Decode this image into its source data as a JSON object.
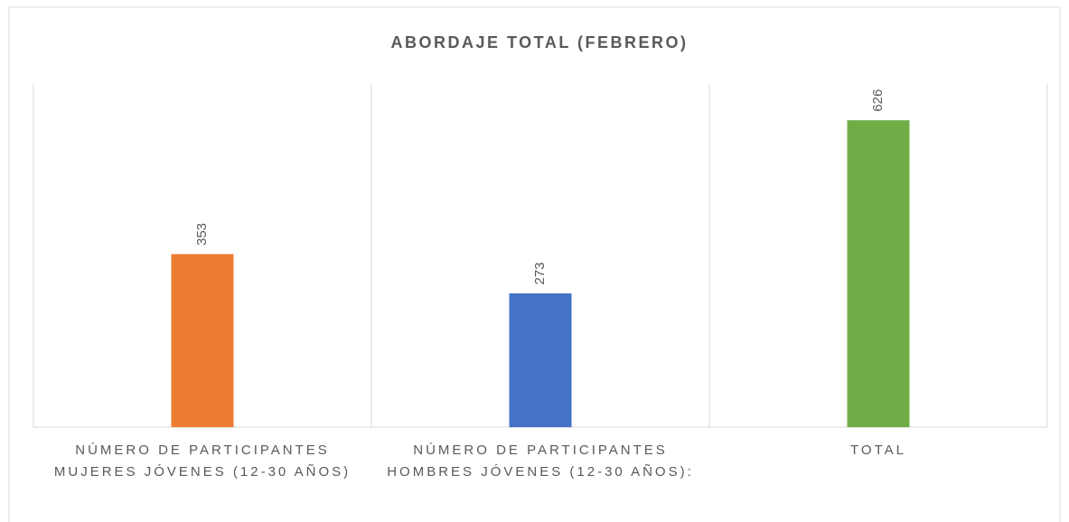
{
  "chart_data": {
    "type": "bar",
    "title": "ABORDAJE TOTAL (FEBRERO)",
    "categories": [
      "NÚMERO DE PARTICIPANTES MUJERES JÓVENES (12-30 AÑOS)",
      "NÚMERO DE PARTICIPANTES HOMBRES JÓVENES (12-30 AÑOS):",
      "TOTAL"
    ],
    "values": [
      353,
      273,
      626
    ],
    "colors": [
      "#ed7d31",
      "#4472c4",
      "#70ad47"
    ],
    "ylim": [
      0,
      700
    ]
  }
}
